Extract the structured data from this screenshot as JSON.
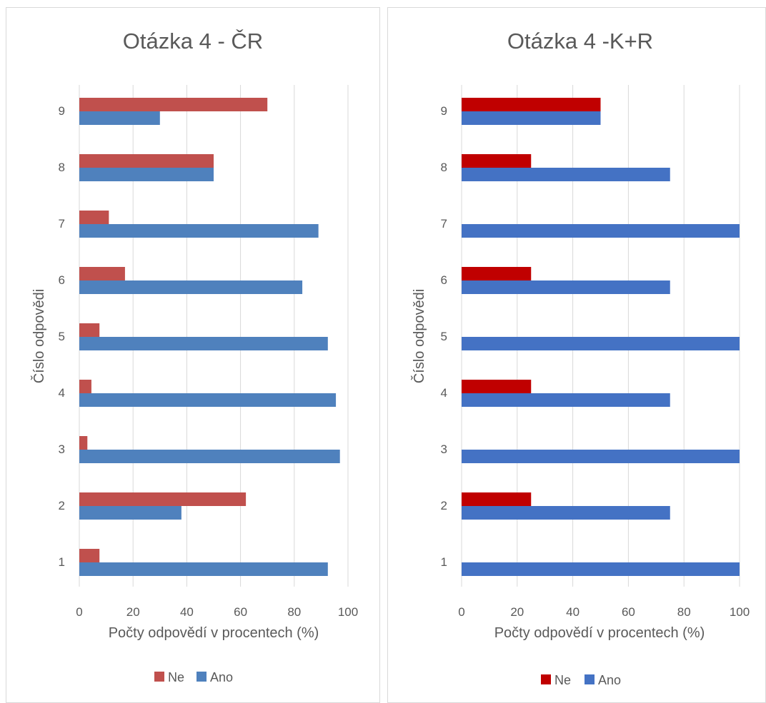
{
  "chart_data": [
    {
      "type": "bar",
      "orientation": "horizontal",
      "title": "Otázka 4 - ČR",
      "xlabel": "Počty odpovědí v procentech (%)",
      "ylabel": "Číslo odpovědi",
      "categories": [
        "1",
        "2",
        "3",
        "4",
        "5",
        "6",
        "7",
        "8",
        "9"
      ],
      "xlim": [
        0,
        100
      ],
      "xticks": [
        "0",
        "20",
        "40",
        "60",
        "80",
        "100"
      ],
      "grid": true,
      "legend_position": "bottom",
      "series": [
        {
          "name": "Ne",
          "color": "#c0504d",
          "values": [
            7.5,
            62,
            3,
            4.5,
            7.5,
            17,
            11,
            50,
            70
          ]
        },
        {
          "name": "Ano",
          "color": "#4f81bd",
          "values": [
            92.5,
            38,
            97,
            95.5,
            92.5,
            83,
            89,
            50,
            30
          ]
        }
      ]
    },
    {
      "type": "bar",
      "orientation": "horizontal",
      "title": "Otázka 4 -K+R",
      "xlabel": "Počty odpovědí v procentech (%)",
      "ylabel": "Číslo odpovědi",
      "categories": [
        "1",
        "2",
        "3",
        "4",
        "5",
        "6",
        "7",
        "8",
        "9"
      ],
      "xlim": [
        0,
        100
      ],
      "xticks": [
        "0",
        "20",
        "40",
        "60",
        "80",
        "100"
      ],
      "grid": true,
      "legend_position": "bottom",
      "series": [
        {
          "name": "Ne",
          "color": "#c00000",
          "values": [
            0,
            25,
            0,
            25,
            0,
            25,
            0,
            25,
            50
          ]
        },
        {
          "name": "Ano",
          "color": "#4472c4",
          "values": [
            100,
            75,
            100,
            75,
            100,
            75,
            100,
            75,
            50
          ]
        }
      ]
    }
  ]
}
